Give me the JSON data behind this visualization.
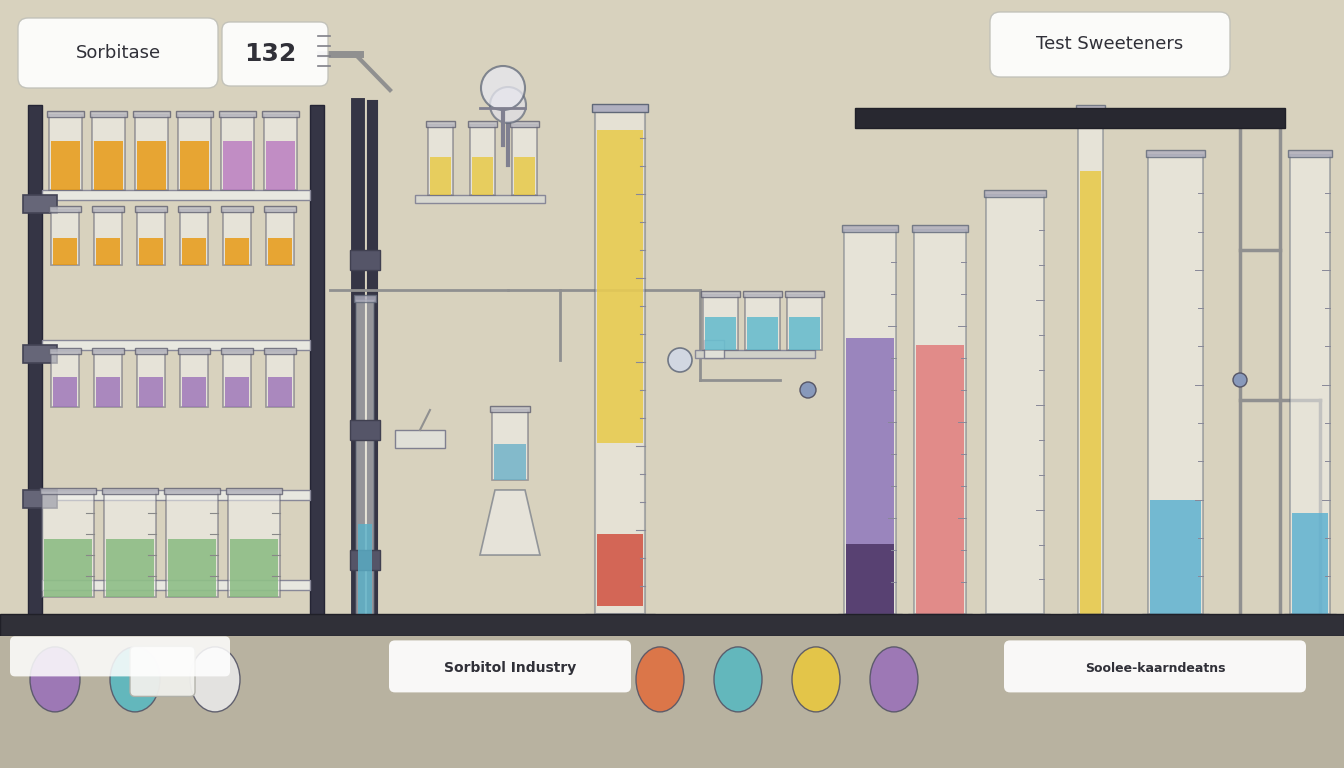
{
  "bg": "#cfc9b5",
  "wall_color": "#d8d2be",
  "bench_color": "#3a3a4a",
  "title_left": "Sorbitase",
  "title_right": "Test Sweeteners",
  "label_value": "132",
  "bottom_label_left": "Sorbitol Industry",
  "bottom_label_right": "Soolee­kaarndeatns",
  "rack_row1": [
    "#e8960a",
    "#e8960a",
    "#e8960a",
    "#e8960a",
    "#b878c0",
    "#b878c0"
  ],
  "rack_row2": [
    "#e8960a",
    "#e8960a",
    "#e8960a",
    "#e8960a",
    "#e8960a",
    "#e8960a"
  ],
  "rack_row3": [
    "#9b72b8",
    "#9b72b8",
    "#9b72b8",
    "#9b72b8",
    "#9b72b8",
    "#9b72b8"
  ],
  "rack_row4_green": [
    "#82b87a",
    "#82b87a",
    "#82b87a",
    "#82b87a"
  ],
  "mid_small_tubes_yellow": [
    "#e8c840",
    "#e8c840",
    "#e8c840"
  ],
  "mid_blue_beaker_color": "#6ab0c8",
  "center_tall_yellow": "#e8c840",
  "center_tall_red": "#d05040",
  "right_cylinders": [
    {
      "color": "#9070b8",
      "fill": 0.72,
      "dark_bottom": "#4a3860"
    },
    {
      "color": "#e07070",
      "fill": 0.7,
      "dark_bottom": "#d05040"
    },
    {
      "color": "#f0f0f0",
      "fill": 0.0
    },
    {
      "color": "#e8c840",
      "fill": 0.85
    },
    {
      "color": "#5ab0d0",
      "fill": 0.25
    }
  ],
  "bottom_capsules_left": [
    {
      "color": "#9b72b8"
    },
    {
      "color": "#5ab8c0"
    },
    {
      "color": "#e8e8e8"
    }
  ],
  "bottom_capsules_right": [
    {
      "color": "#e07040"
    },
    {
      "color": "#5ab8c0"
    },
    {
      "color": "#e8c840"
    },
    {
      "color": "#9b72b8"
    }
  ]
}
